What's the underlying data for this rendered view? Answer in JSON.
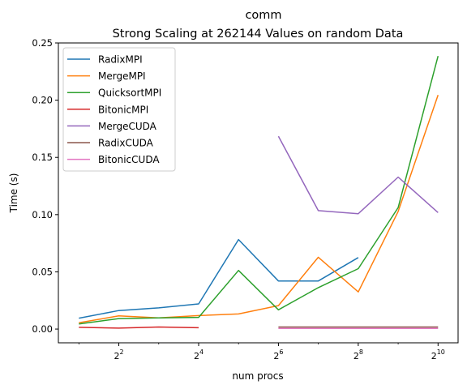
{
  "chart_data": {
    "type": "line",
    "title": "comm",
    "subtitle": "Strong Scaling at 262144 Values on random Data",
    "xlabel": "num procs",
    "ylabel": "Time (s)",
    "x_scale": "log2",
    "x": [
      2,
      4,
      8,
      16,
      32,
      64,
      128,
      256,
      512,
      1024
    ],
    "xlim": [
      1.4,
      1450
    ],
    "ylim": [
      -0.012,
      0.25
    ],
    "x_ticks": [
      {
        "value": 4,
        "base": "2",
        "exp": "2"
      },
      {
        "value": 16,
        "base": "2",
        "exp": "4"
      },
      {
        "value": 64,
        "base": "2",
        "exp": "6"
      },
      {
        "value": 256,
        "base": "2",
        "exp": "8"
      },
      {
        "value": 1024,
        "base": "2",
        "exp": "10"
      }
    ],
    "y_ticks": [
      {
        "value": 0.0,
        "label": "0.00"
      },
      {
        "value": 0.05,
        "label": "0.05"
      },
      {
        "value": 0.1,
        "label": "0.10"
      },
      {
        "value": 0.15,
        "label": "0.15"
      },
      {
        "value": 0.2,
        "label": "0.20"
      },
      {
        "value": 0.25,
        "label": "0.25"
      }
    ],
    "grid": false,
    "legend_position": "top-left",
    "series": [
      {
        "name": "RadixMPI",
        "color": "#1f77b4",
        "points": [
          [
            2,
            0.0095
          ],
          [
            4,
            0.0162
          ],
          [
            8,
            0.0185
          ],
          [
            16,
            0.022
          ],
          [
            32,
            0.0782
          ],
          [
            64,
            0.042
          ],
          [
            128,
            0.042
          ],
          [
            256,
            0.0625
          ]
        ]
      },
      {
        "name": "MergeMPI",
        "color": "#ff7f0e",
        "points": [
          [
            2,
            0.0055
          ],
          [
            4,
            0.0115
          ],
          [
            8,
            0.0098
          ],
          [
            16,
            0.0118
          ],
          [
            32,
            0.0132
          ],
          [
            64,
            0.0205
          ],
          [
            128,
            0.0628
          ],
          [
            256,
            0.0325
          ],
          [
            512,
            0.1028
          ],
          [
            1024,
            0.2045
          ]
        ]
      },
      {
        "name": "QuicksortMPI",
        "color": "#2ca02c",
        "points": [
          [
            2,
            0.0045
          ],
          [
            4,
            0.0092
          ],
          [
            8,
            0.0098
          ],
          [
            16,
            0.0102
          ],
          [
            32,
            0.0512
          ],
          [
            64,
            0.0168
          ],
          [
            128,
            0.0362
          ],
          [
            256,
            0.0528
          ],
          [
            512,
            0.1062
          ],
          [
            1024,
            0.2385
          ]
        ]
      },
      {
        "name": "BitonicMPI",
        "color": "#d62728",
        "points": [
          [
            2,
            0.0015
          ],
          [
            4,
            0.0008
          ],
          [
            8,
            0.0018
          ],
          [
            16,
            0.0012
          ]
        ]
      },
      {
        "name": "MergeCUDA",
        "color": "#9467bd",
        "points": [
          [
            64,
            0.1685
          ],
          [
            128,
            0.1035
          ],
          [
            256,
            0.1008
          ],
          [
            512,
            0.1328
          ],
          [
            1024,
            0.1018
          ]
        ]
      },
      {
        "name": "RadixCUDA",
        "color": "#8c564b",
        "points": [
          [
            64,
            0.0018
          ],
          [
            128,
            0.0018
          ],
          [
            256,
            0.0018
          ],
          [
            512,
            0.0018
          ],
          [
            1024,
            0.0018
          ]
        ]
      },
      {
        "name": "BitonicCUDA",
        "color": "#e377c2",
        "points": [
          [
            64,
            0.0005
          ],
          [
            128,
            0.0005
          ],
          [
            256,
            0.0005
          ],
          [
            512,
            0.0005
          ],
          [
            1024,
            0.0005
          ]
        ]
      }
    ]
  }
}
